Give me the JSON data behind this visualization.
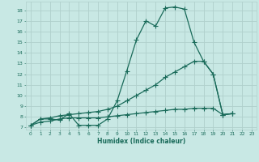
{
  "xlabel": "Humidex (Indice chaleur)",
  "xlim": [
    -0.5,
    23.5
  ],
  "ylim": [
    6.8,
    18.8
  ],
  "yticks": [
    7,
    8,
    9,
    10,
    11,
    12,
    13,
    14,
    15,
    16,
    17,
    18
  ],
  "xticks": [
    0,
    1,
    2,
    3,
    4,
    5,
    6,
    7,
    8,
    9,
    10,
    11,
    12,
    13,
    14,
    15,
    16,
    17,
    18,
    19,
    20,
    21,
    22,
    23
  ],
  "bg_color": "#c8e8e4",
  "grid_color": "#b0d0cc",
  "line_color": "#1a6b5a",
  "line1_x": [
    0,
    1,
    2,
    3,
    4,
    5,
    6,
    7,
    8,
    9,
    10,
    11,
    12,
    13,
    14,
    15,
    16,
    17,
    18,
    19,
    20,
    21
  ],
  "line1_y": [
    7.2,
    7.8,
    7.8,
    7.7,
    8.3,
    7.2,
    7.2,
    7.2,
    7.8,
    9.5,
    12.3,
    15.2,
    17.0,
    16.5,
    18.2,
    18.3,
    18.1,
    15.0,
    13.2,
    12.0,
    8.2,
    8.3
  ],
  "line2_x": [
    0,
    1,
    2,
    3,
    4,
    5,
    6,
    7,
    8,
    9,
    10,
    11,
    12,
    13,
    14,
    15,
    16,
    17,
    18,
    19,
    20,
    21
  ],
  "line2_y": [
    7.2,
    7.8,
    7.9,
    8.1,
    8.2,
    8.3,
    8.4,
    8.5,
    8.7,
    9.0,
    9.5,
    10.0,
    10.5,
    11.0,
    11.7,
    12.2,
    12.7,
    13.2,
    13.2,
    12.0,
    8.2,
    8.3
  ],
  "line3_x": [
    0,
    1,
    2,
    3,
    4,
    5,
    6,
    7,
    8,
    9,
    10,
    11,
    12,
    13,
    14,
    15,
    16,
    17,
    18,
    19,
    20,
    21
  ],
  "line3_y": [
    7.2,
    7.5,
    7.6,
    7.8,
    7.9,
    7.9,
    7.9,
    7.9,
    8.0,
    8.1,
    8.2,
    8.3,
    8.4,
    8.5,
    8.6,
    8.7,
    8.7,
    8.8,
    8.8,
    8.8,
    8.2,
    8.3
  ],
  "markersize": 2.0,
  "linewidth": 0.9
}
